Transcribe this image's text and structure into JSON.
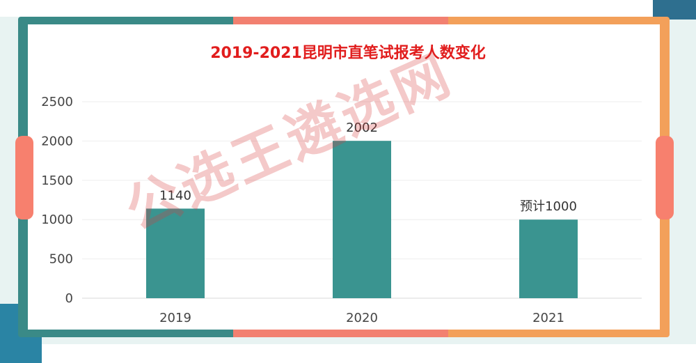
{
  "colors": {
    "bar": "#3a9490",
    "title": "#e11d1d",
    "axis_text": "#444444",
    "grid": "#eeeeee",
    "frame_teal": "#3a8a87",
    "frame_coral": "#f28070",
    "frame_orange": "#f3a05a"
  },
  "watermark": "公选王遴选网",
  "chart_data": {
    "type": "bar",
    "title": "2019-2021昆明市直笔试报考人数变化",
    "categories": [
      "2019",
      "2020",
      "2021"
    ],
    "values": [
      1140,
      2002,
      1000
    ],
    "data_labels": [
      "1140",
      "2002",
      "预计1000"
    ],
    "yticks": [
      "0",
      "500",
      "1000",
      "1500",
      "2000",
      "2500"
    ],
    "ylim": [
      0,
      2500
    ],
    "xlabel": "",
    "ylabel": "",
    "grid": true
  }
}
